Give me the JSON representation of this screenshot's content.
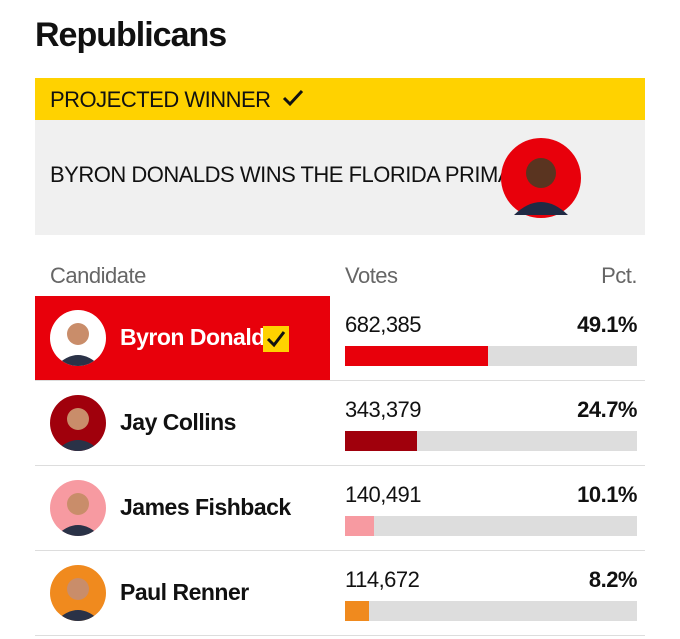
{
  "header": {
    "title": "Republicans"
  },
  "banner": {
    "label": "PROJECTED WINNER",
    "headline": "BYRON DONALDS WINS THE FLORIDA PRIMARY"
  },
  "table": {
    "columns": [
      "Candidate",
      "Votes",
      "Pct."
    ],
    "rows": [
      {
        "name": "Byron Donalds",
        "votes": "682,385",
        "pct": {
          "value": 49.1,
          "label": "49.1%"
        },
        "color": "#e8000b",
        "winner": true
      },
      {
        "name": "Jay Collins",
        "votes": "343,379",
        "pct": {
          "value": 24.7,
          "label": "24.7%"
        },
        "color": "#a0000c",
        "winner": false
      },
      {
        "name": "James Fishback",
        "votes": "140,491",
        "pct": {
          "value": 10.1,
          "label": "10.1%"
        },
        "color": "#f79aa1",
        "winner": false
      },
      {
        "name": "Paul Renner",
        "votes": "114,672",
        "pct": {
          "value": 8.2,
          "label": "8.2%"
        },
        "color": "#f08a1e",
        "winner": false
      }
    ]
  }
}
